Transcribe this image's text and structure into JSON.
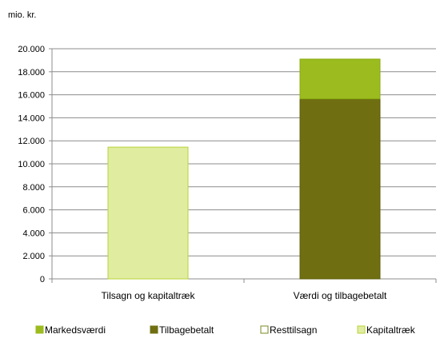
{
  "chart_data": {
    "type": "bar",
    "stacked": true,
    "unit_label": "mio. kr.",
    "categories": [
      "Tilsagn og kapitaltræk",
      "Værdi og tilbagebetalt"
    ],
    "series": [
      {
        "name": "Markedsværdi",
        "color": "#9bbb1e",
        "values": [
          0,
          3450
        ]
      },
      {
        "name": "Tilbagebetalt",
        "color": "#6f6f12",
        "values": [
          0,
          15650
        ]
      },
      {
        "name": "Resttilsagn",
        "color": "#ffffff",
        "values": [
          0,
          0
        ]
      },
      {
        "name": "Kapitaltræk",
        "color": "#e0eda0",
        "values": [
          11450,
          0
        ]
      }
    ],
    "y_ticks": [
      "0",
      "2.000",
      "4.000",
      "6.000",
      "8.000",
      "10.000",
      "12.000",
      "14.000",
      "16.000",
      "18.000",
      "20.000"
    ],
    "ylim": [
      0,
      20000
    ],
    "grid": true,
    "legend_position": "bottom"
  }
}
